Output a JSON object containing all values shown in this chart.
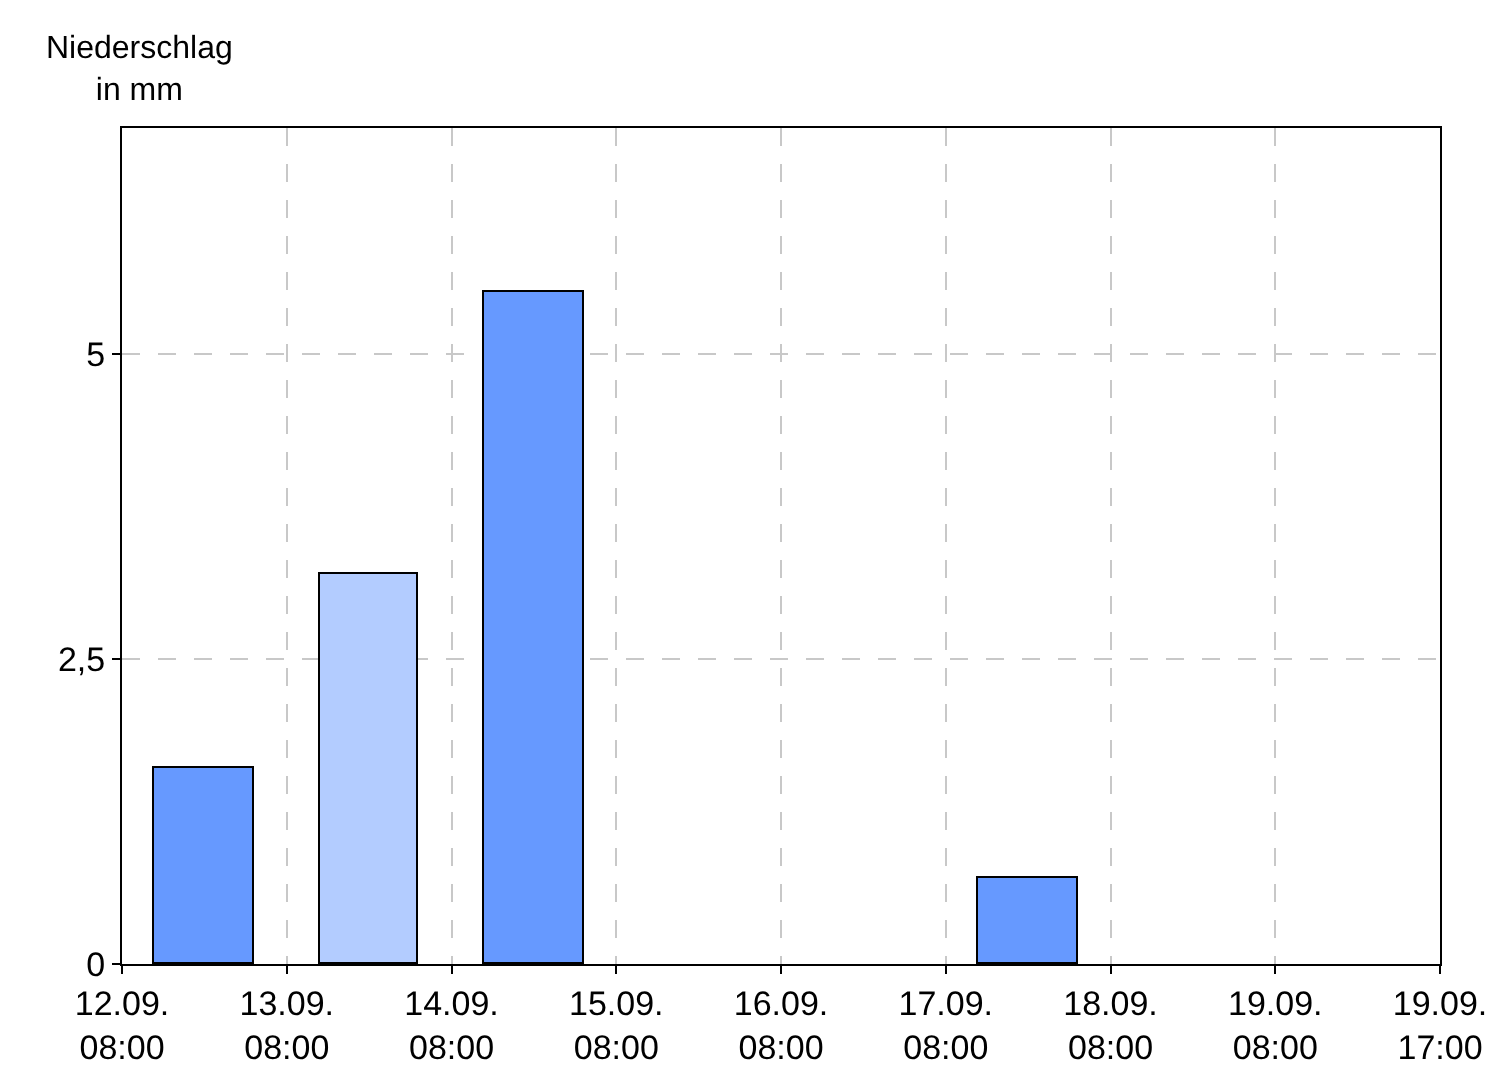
{
  "chart_data": {
    "type": "bar",
    "ylabel": "Niederschlag\nin mm",
    "categories": [
      "12.09.\n08:00",
      "13.09.\n08:00",
      "14.09.\n08:00",
      "15.09.\n08:00",
      "16.09.\n08:00",
      "17.09.\n08:00",
      "18.09.\n08:00",
      "19.09.\n08:00",
      "19.09.\n17:00"
    ],
    "values": [
      1.6,
      3.2,
      5.5,
      null,
      null,
      0.7,
      null,
      null,
      null
    ],
    "colors": [
      "#6699ff",
      "#b3ccff",
      "#6699ff",
      "#6699ff",
      "#6699ff",
      "#6699ff",
      "#6699ff",
      "#6699ff",
      "#6699ff"
    ],
    "ylim": [
      0,
      6.85
    ],
    "yticks": [
      0,
      {
        "value": 2.5,
        "label": "2,5"
      },
      5
    ],
    "grid": true
  }
}
